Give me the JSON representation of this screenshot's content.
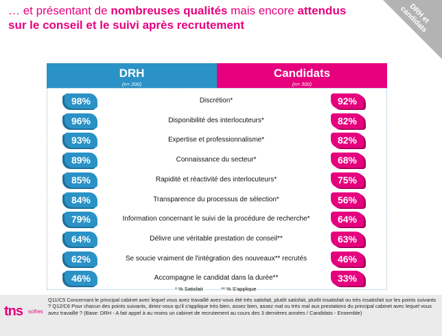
{
  "title": {
    "part1": "… et présentant de ",
    "part2": "nombreuses qualités",
    "part3": " mais encore ",
    "part4": "attendus",
    "line2": "sur le conseil et le suivi après recrutement"
  },
  "corner_label": "DRH et candidats",
  "headers": {
    "drh": {
      "title": "DRH",
      "sub": "(n= 200)"
    },
    "candidats": {
      "title": "Candidats",
      "sub": "(n= 300)"
    }
  },
  "chart_data": {
    "type": "table",
    "series": [
      {
        "name": "DRH",
        "values": [
          98,
          96,
          93,
          89,
          85,
          84,
          79,
          64,
          62,
          46
        ]
      },
      {
        "name": "Candidats",
        "values": [
          92,
          82,
          82,
          68,
          75,
          56,
          64,
          63,
          46,
          33
        ]
      }
    ],
    "categories": [
      "Discrétion*",
      "Disponibilité des interlocuteurs*",
      "Expertise et professionnalisme*",
      "Connaissance du secteur*",
      "Rapidité et réactivité des interlocuteurs*",
      "Transparence du processus de sélection*",
      "Information concernant le suivi de la procédure de recherche*",
      "Délivre une véritable prestation de conseil**",
      "Se soucie vraiment de l'intégration des nouveaux** recrutés",
      "Accompagne le candidat dans la durée**"
    ],
    "rows": [
      {
        "drh": "98%",
        "label": "Discrétion*",
        "cand": "92%"
      },
      {
        "drh": "96%",
        "label": "Disponibilité des interlocuteurs*",
        "cand": "82%"
      },
      {
        "drh": "93%",
        "label": "Expertise et professionnalisme*",
        "cand": "82%"
      },
      {
        "drh": "89%",
        "label": "Connaissance du secteur*",
        "cand": "68%"
      },
      {
        "drh": "85%",
        "label": "Rapidité et réactivité des interlocuteurs*",
        "cand": "75%"
      },
      {
        "drh": "84%",
        "label": "Transparence du processus de sélection*",
        "cand": "56%"
      },
      {
        "drh": "79%",
        "label": "Information concernant le suivi de la procédure de recherche*",
        "cand": "64%"
      },
      {
        "drh": "64%",
        "label": "Délivre une véritable prestation de conseil**",
        "cand": "63%"
      },
      {
        "drh": "62%",
        "label": "Se soucie vraiment de l'intégration des nouveaux** recrutés",
        "cand": "46%"
      },
      {
        "drh": "46%",
        "label": "Accompagne le candidat dans la durée**",
        "cand": "33%"
      }
    ],
    "legend": {
      "one_star": "* % Satisfait",
      "two_stars": "** % S'applique"
    }
  },
  "colors": {
    "drh": "#2a92c6",
    "candidats": "#e6007e"
  },
  "footer": {
    "logo_main": "tns",
    "logo_sub": "sofres",
    "note": "Q11/C5 Concernant le principal cabinet avec lequel vous avez travaillé avez-vous été très satisfait, plutôt satisfait, plutôt insatisfait ou très insatisfait sur les points suivants ? Q12/C6 Pour chacun des points suivants, diriez-vous qu'il s'applique très bien, assez bien, assez mal ou très mal aux prestations du principal cabinet avec lequel vous avez travaillé ? (Base: DRH - A fait appel à au moins un cabinet de recrutement au cours des 3 dernières années / Candidats - Ensemble)"
  }
}
